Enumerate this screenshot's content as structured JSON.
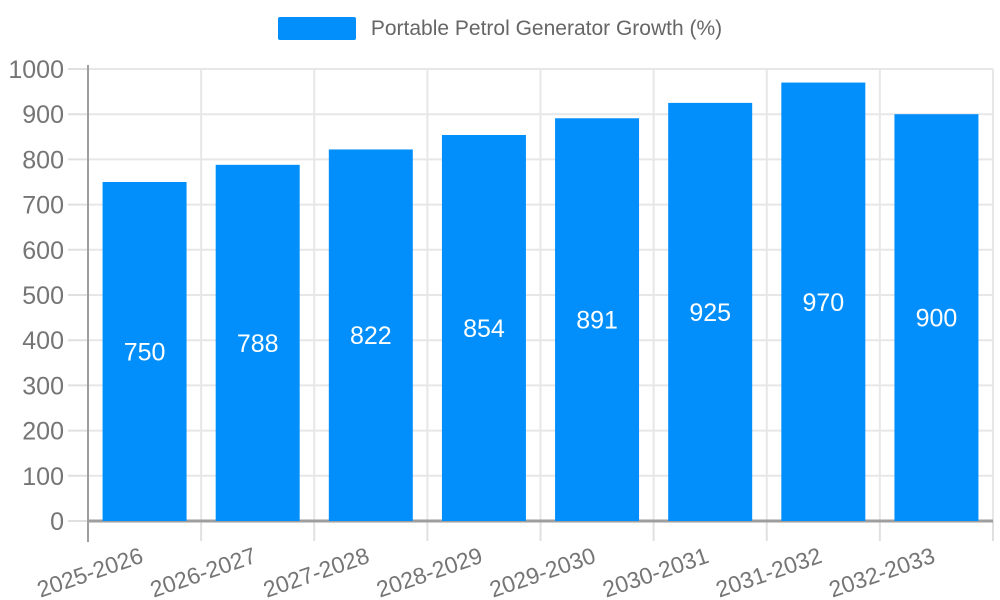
{
  "legend": {
    "label": "Portable Petrol Generator Growth (%)"
  },
  "chart_data": {
    "type": "bar",
    "title": "Portable Petrol Generator Growth (%)",
    "categories": [
      "2025-2026",
      "2026-2027",
      "2027-2028",
      "2028-2029",
      "2029-2030",
      "2030-2031",
      "2031-2032",
      "2032-2033"
    ],
    "values": [
      750,
      788,
      822,
      854,
      891,
      925,
      970,
      900
    ],
    "data_labels": [
      "750",
      "788",
      "822",
      "854",
      "891",
      "925",
      "970",
      "900"
    ],
    "ytick_labels": [
      "0",
      "100",
      "200",
      "300",
      "400",
      "500",
      "600",
      "700",
      "800",
      "900",
      "1000"
    ],
    "yticks": [
      0,
      100,
      200,
      300,
      400,
      500,
      600,
      700,
      800,
      900,
      1000
    ],
    "ylim": [
      0,
      1000
    ],
    "xlabel": "",
    "ylabel": "",
    "legend_position": "top",
    "grid": "horizontal value lines and vertical category-boundary lines",
    "x_label_rotation_deg": -19,
    "colors": {
      "bar": "#028ffb",
      "grid": "#e7e7e7",
      "axis": "#9e9e9e",
      "tick": "#e0e0e0",
      "axis_text": "#757575",
      "data_label_text": "#ffffff",
      "legend_text": "#666666"
    }
  }
}
